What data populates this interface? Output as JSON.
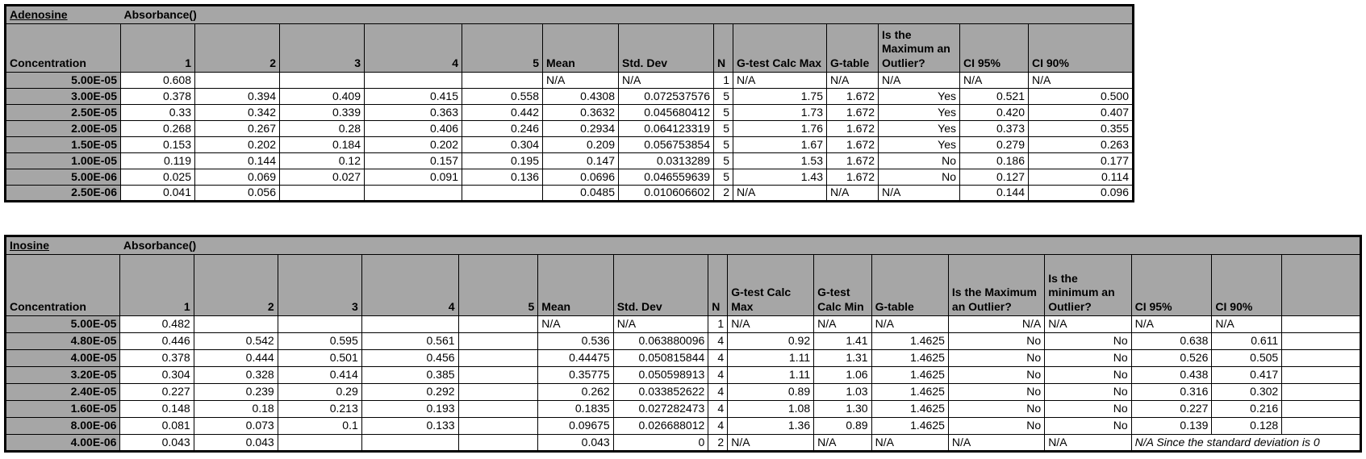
{
  "colors": {
    "header_fill": "#a6a6a6",
    "cell_fill": "#ffffff",
    "grid_border": "#000000",
    "text": "#000000"
  },
  "tables": [
    {
      "id": "adenosine",
      "title": "Adenosine",
      "subtitle": "Absorbance()",
      "headers": [
        "Concentration",
        "1",
        "2",
        "3",
        "4",
        "5",
        "Mean",
        "Std. Dev",
        "N",
        "G-test Calc Max",
        "G-table",
        "Is the Maximum an Outlier?",
        "CI 95%",
        "CI 90%"
      ],
      "rows": [
        [
          "5.00E-05",
          "0.608",
          "",
          "",
          "",
          "",
          "N/A",
          "N/A",
          "1",
          "N/A",
          "N/A",
          "N/A",
          "N/A",
          "N/A"
        ],
        [
          "3.00E-05",
          "0.378",
          "0.394",
          "0.409",
          "0.415",
          "0.558",
          "0.4308",
          "0.072537576",
          "5",
          "1.75",
          "1.672",
          "Yes",
          "0.521",
          "0.500"
        ],
        [
          "2.50E-05",
          "0.33",
          "0.342",
          "0.339",
          "0.363",
          "0.442",
          "0.3632",
          "0.045680412",
          "5",
          "1.73",
          "1.672",
          "Yes",
          "0.420",
          "0.407"
        ],
        [
          "2.00E-05",
          "0.268",
          "0.267",
          "0.28",
          "0.406",
          "0.246",
          "0.2934",
          "0.064123319",
          "5",
          "1.76",
          "1.672",
          "Yes",
          "0.373",
          "0.355"
        ],
        [
          "1.50E-05",
          "0.153",
          "0.202",
          "0.184",
          "0.202",
          "0.304",
          "0.209",
          "0.056753854",
          "5",
          "1.67",
          "1.672",
          "Yes",
          "0.279",
          "0.263"
        ],
        [
          "1.00E-05",
          "0.119",
          "0.144",
          "0.12",
          "0.157",
          "0.195",
          "0.147",
          "0.0313289",
          "5",
          "1.53",
          "1.672",
          "No",
          "0.186",
          "0.177"
        ],
        [
          "5.00E-06",
          "0.025",
          "0.069",
          "0.027",
          "0.091",
          "0.136",
          "0.0696",
          "0.046559639",
          "5",
          "1.43",
          "1.672",
          "No",
          "0.127",
          "0.114"
        ],
        [
          "2.50E-06",
          "0.041",
          "0.056",
          "",
          "",
          "",
          "0.0485",
          "0.010606602",
          "2",
          "N/A",
          "N/A",
          "N/A",
          "0.144",
          "0.096"
        ]
      ]
    },
    {
      "id": "inosine",
      "title": "Inosine",
      "subtitle": "Absorbance()",
      "headers": [
        "Concentration",
        "1",
        "2",
        "3",
        "4",
        "5",
        "Mean",
        "Std. Dev",
        "N",
        "G-test Calc Max",
        "G-test Calc Min",
        "G-table",
        "Is the Maximum an Outlier?",
        "Is the minimum an Outlier?",
        "CI 95%",
        "CI 90%",
        ""
      ],
      "rows": [
        [
          "5.00E-05",
          "0.482",
          "",
          "",
          "",
          "",
          "N/A",
          "N/A",
          "1",
          "N/A",
          "N/A",
          "N/A",
          {
            "v": "N/A",
            "align": "right"
          },
          "N/A",
          "N/A",
          "N/A",
          ""
        ],
        [
          "4.80E-05",
          "0.446",
          "0.542",
          "0.595",
          "0.561",
          "",
          "0.536",
          "0.063880096",
          "4",
          "0.92",
          "1.41",
          "1.4625",
          "No",
          "No",
          "0.638",
          "0.611",
          ""
        ],
        [
          "4.00E-05",
          "0.378",
          "0.444",
          "0.501",
          "0.456",
          "",
          "0.44475",
          "0.050815844",
          "4",
          "1.11",
          "1.31",
          "1.4625",
          "No",
          "No",
          "0.526",
          "0.505",
          ""
        ],
        [
          "3.20E-05",
          "0.304",
          "0.328",
          "0.414",
          "0.385",
          "",
          "0.35775",
          "0.050598913",
          "4",
          "1.11",
          "1.06",
          "1.4625",
          "No",
          "No",
          "0.438",
          "0.417",
          ""
        ],
        [
          "2.40E-05",
          "0.227",
          "0.239",
          "0.29",
          "0.292",
          "",
          "0.262",
          "0.033852622",
          "4",
          "0.89",
          "1.03",
          "1.4625",
          "No",
          "No",
          "0.316",
          "0.302",
          ""
        ],
        [
          "1.60E-05",
          "0.148",
          "0.18",
          "0.213",
          "0.193",
          "",
          "0.1835",
          "0.027282473",
          "4",
          "1.08",
          "1.30",
          "1.4625",
          "No",
          "No",
          "0.227",
          "0.216",
          ""
        ],
        [
          "8.00E-06",
          "0.081",
          "0.073",
          "0.1",
          "0.133",
          "",
          "0.09675",
          "0.026688012",
          "4",
          "1.36",
          "0.89",
          "1.4625",
          "No",
          "No",
          "0.139",
          "0.128",
          ""
        ],
        [
          "4.00E-06",
          "0.043",
          "0.043",
          "",
          "",
          "",
          "0.043",
          "0",
          "2",
          "N/A",
          "N/A",
          "N/A",
          "N/A",
          "N/A",
          {
            "v": "N/A Since the standard deviation is 0",
            "span": 3,
            "italic": true
          }
        ]
      ]
    }
  ]
}
